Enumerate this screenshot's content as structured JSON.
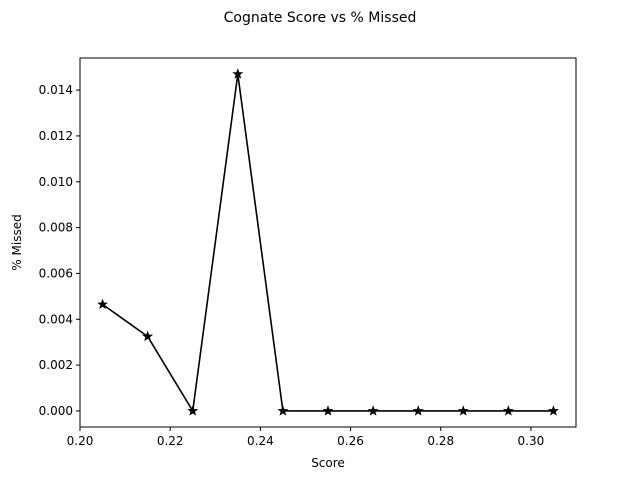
{
  "chart_data": {
    "type": "line",
    "title": "Cognate Score vs % Missed",
    "xlabel": "Score",
    "ylabel": "% Missed",
    "xlim": [
      0.2,
      0.31
    ],
    "ylim": [
      -0.0007,
      0.0154
    ],
    "xticks": [
      "0.20",
      "0.22",
      "0.24",
      "0.26",
      "0.28",
      "0.30"
    ],
    "yticks": [
      "0.000",
      "0.002",
      "0.004",
      "0.006",
      "0.008",
      "0.010",
      "0.012",
      "0.014"
    ],
    "grid": false,
    "line_color": "#000000",
    "marker": "star",
    "series": [
      {
        "x": [
          0.205,
          0.215,
          0.225,
          0.235,
          0.245,
          0.255,
          0.265,
          0.275,
          0.285,
          0.295,
          0.305
        ],
        "y": [
          0.00465,
          0.00325,
          0.0,
          0.0147,
          0.0,
          0.0,
          0.0,
          0.0,
          0.0,
          0.0,
          0.0
        ]
      }
    ]
  }
}
